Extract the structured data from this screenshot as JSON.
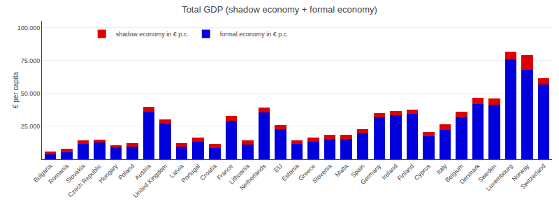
{
  "chart_data": {
    "type": "bar",
    "stacked": true,
    "title": "Total GDP (shadow economy + formal economy)",
    "ylabel": "€ per capita",
    "categories": [
      "Bulgaria",
      "Romania",
      "Slovakia",
      "Czech Republic",
      "Hungary",
      "Poland",
      "Austria",
      "United Kingdom",
      "Latvia",
      "Portugal",
      "Croatia",
      "France",
      "Lithuania",
      "Netherlands",
      "EU",
      "Estonia",
      "Greece",
      "Slovenia",
      "Malta",
      "Spain",
      "Germany",
      "Ireland",
      "Finland",
      "Cyprus",
      "Italy",
      "Belgium",
      "Denmark",
      "Sweden",
      "Luxembourg",
      "Norway",
      "Switzerland"
    ],
    "series": [
      {
        "name": "formal economy in € p.c.",
        "color": "#0000dd",
        "values": [
          3800,
          5500,
          11500,
          12500,
          9000,
          9500,
          36000,
          27000,
          9500,
          13000,
          8500,
          29000,
          11000,
          35500,
          23000,
          11500,
          13500,
          15500,
          15500,
          19500,
          32000,
          33500,
          34500,
          17500,
          22500,
          32000,
          42000,
          41500,
          76000,
          68000,
          57000
        ]
      },
      {
        "name": "shadow economy in € p.c.",
        "color": "#dd0000",
        "values": [
          1800,
          2200,
          2800,
          2200,
          1800,
          2800,
          3800,
          3200,
          2800,
          3200,
          3200,
          3800,
          3200,
          3800,
          3200,
          2800,
          3200,
          2800,
          2800,
          3200,
          3200,
          3200,
          3200,
          3200,
          4200,
          3800,
          4800,
          4800,
          5500,
          11000,
          4500
        ]
      }
    ],
    "ylim": [
      0,
      105000
    ],
    "yticks": [
      {
        "value": 25000,
        "label": "25.000"
      },
      {
        "value": 50000,
        "label": "50.000"
      },
      {
        "value": 75000,
        "label": "75.000"
      },
      {
        "value": 100000,
        "label": "100.000"
      }
    ],
    "grid": true,
    "legend": "upper left"
  }
}
